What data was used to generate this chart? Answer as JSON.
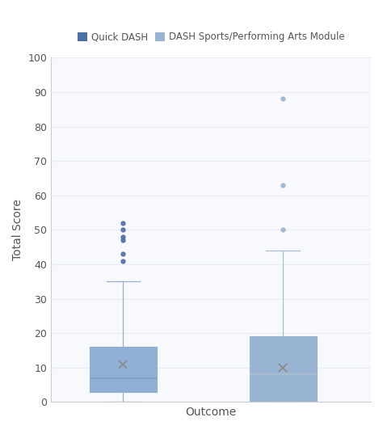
{
  "box1": {
    "label": "Quick DASH",
    "color": "#4d6fa8",
    "edge_color": "#8fafd4",
    "whisker_color": "#9ab0cc",
    "median_color": "#7a9fc0",
    "mean_color": "#888888",
    "whislo": 0,
    "q1": 3,
    "med": 7,
    "q3": 16,
    "whishi": 35,
    "mean": 11,
    "fliers": [
      41,
      43,
      47,
      48,
      50,
      52
    ]
  },
  "box2": {
    "label": "DASH Sports/Performing Arts Module",
    "color": "#9ab4d4",
    "edge_color": "#9ab4d4",
    "whisker_color": "#aabfcf",
    "median_color": "#aabfcf",
    "mean_color": "#888888",
    "whislo": 0,
    "q1": 0,
    "med": 8,
    "q3": 19,
    "whishi": 44,
    "mean": 10,
    "fliers": [
      50,
      63,
      88
    ]
  },
  "ylabel": "Total Score",
  "xlabel": "Outcome",
  "ylim": [
    0,
    100
  ],
  "yticks": [
    0,
    10,
    20,
    30,
    40,
    50,
    60,
    70,
    80,
    90,
    100
  ],
  "background_color": "#ffffff",
  "plot_bg_color": "#f7f9fc",
  "grid_color": "#e8eef5",
  "box_width": 0.42,
  "positions": [
    1,
    2
  ],
  "xlim": [
    0.55,
    2.55
  ]
}
